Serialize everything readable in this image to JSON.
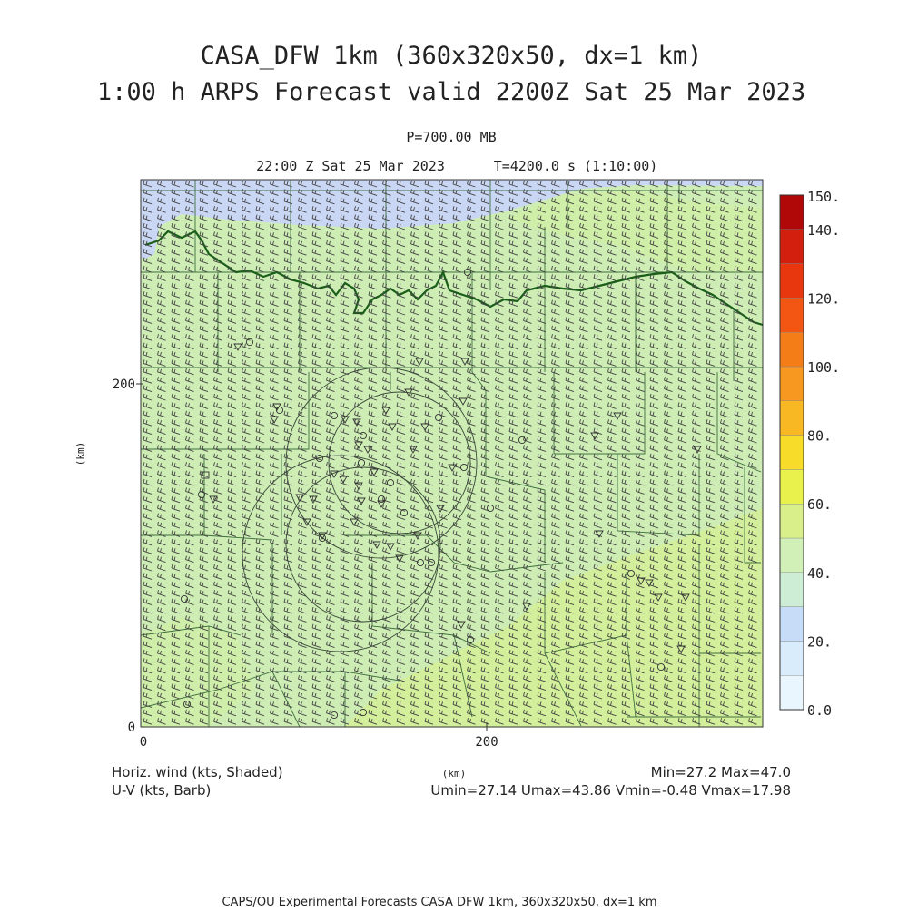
{
  "header": {
    "title_line1": "CASA_DFW 1km (360x320x50, dx=1 km)",
    "title_line2": "1:00 h ARPS Forecast valid 2200Z Sat 25 Mar 2023",
    "pressure_level": "P=700.00 MB",
    "valid_time": "22:00 Z Sat 25 Mar 2023",
    "model_time": "T=4200.0 s (1:10:00)"
  },
  "axes": {
    "x_unit": "(km)",
    "y_unit": "(km)",
    "x_ticks": [
      "0",
      "200"
    ],
    "y_ticks": [
      "0",
      "200"
    ],
    "x_range_km": [
      0,
      360
    ],
    "y_range_km": [
      0,
      320
    ]
  },
  "colorbar": {
    "labels": [
      "0.0",
      "20.",
      "40.",
      "60.",
      "80.",
      "100.",
      "120.",
      "140.",
      "150."
    ],
    "bands": [
      {
        "from": 0,
        "to": 10,
        "color": "#eaf6fd"
      },
      {
        "from": 10,
        "to": 20,
        "color": "#d8ecfb"
      },
      {
        "from": 20,
        "to": 30,
        "color": "#c7dcf6"
      },
      {
        "from": 30,
        "to": 40,
        "color": "#cdedd4"
      },
      {
        "from": 40,
        "to": 50,
        "color": "#d0f0b7"
      },
      {
        "from": 50,
        "to": 60,
        "color": "#d9f08a"
      },
      {
        "from": 60,
        "to": 70,
        "color": "#e9f24c"
      },
      {
        "from": 70,
        "to": 80,
        "color": "#f7dc2a"
      },
      {
        "from": 80,
        "to": 90,
        "color": "#f8b824"
      },
      {
        "from": 90,
        "to": 100,
        "color": "#f79820"
      },
      {
        "from": 100,
        "to": 110,
        "color": "#f47d17"
      },
      {
        "from": 110,
        "to": 120,
        "color": "#f35512"
      },
      {
        "from": 120,
        "to": 130,
        "color": "#e8360f"
      },
      {
        "from": 130,
        "to": 140,
        "color": "#d21f0e"
      },
      {
        "from": 140,
        "to": 150,
        "color": "#b00808"
      }
    ]
  },
  "footer": {
    "field_name": "Horiz. wind (kts, Shaded)",
    "barb_name": "U-V (kts, Barb)",
    "minmax": "Min=27.2 Max=47.0",
    "uv_stats": "Umin=27.14 Umax=43.86 Vmin=-0.48 Vmax=17.98",
    "x_axis_unit": "(km)",
    "credit": "CAPS/OU Experimental Forecasts  CASA DFW 1km, 360x320x50, dx=1 km"
  },
  "colors": {
    "field_green": "#cdedb4",
    "field_blue": "#c9d6f4",
    "field_yellowgreen": "#d3ef9a",
    "border": "#2d5e2d",
    "river": "#1a5e1a",
    "barb": "#404040"
  }
}
